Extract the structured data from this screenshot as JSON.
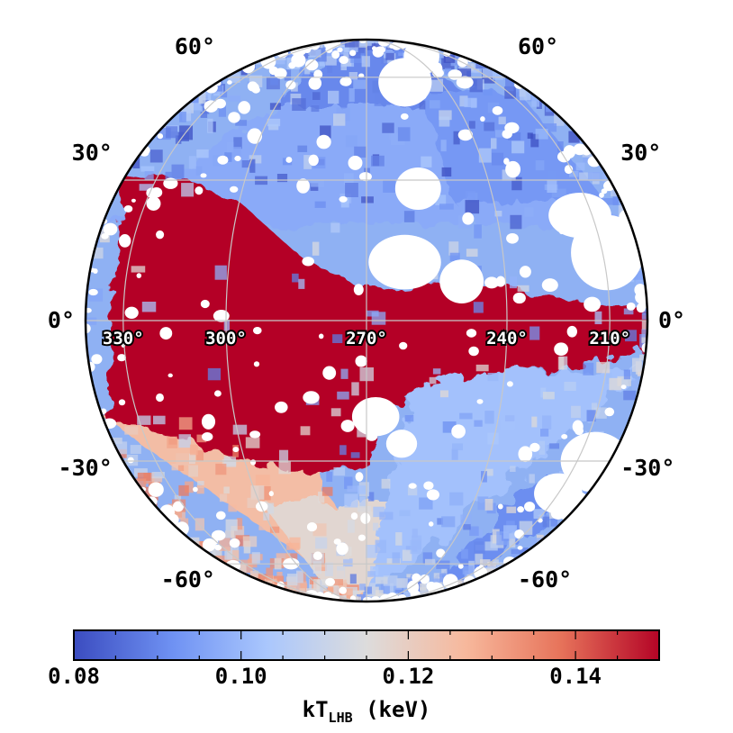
{
  "chart_data": {
    "type": "heatmap",
    "projection": "orthographic sky map (hemisphere)",
    "center_longitude": 270,
    "center_latitude": 0,
    "meridians_deg": [
      330,
      300,
      270,
      240,
      210
    ],
    "parallels_deg": [
      -60,
      -30,
      0,
      30,
      60
    ],
    "lon_labels": [
      "330°",
      "300°",
      "270°",
      "240°",
      "210°"
    ],
    "lat_labels_left": [
      "60°",
      "30°",
      "0°",
      "-30°",
      "-60°"
    ],
    "lat_labels_right": [
      "60°",
      "30°",
      "0°",
      "-30°",
      "-60°"
    ],
    "grid": true,
    "colorbar": {
      "label_main": "kT",
      "label_sub": "LHB",
      "label_unit": " (keV)",
      "range": [
        0.08,
        0.15
      ],
      "ticks": [
        "0.08",
        "0.10",
        "0.12",
        "0.14"
      ],
      "tick_values": [
        0.08,
        0.1,
        0.12,
        0.14
      ],
      "colormap": "coolwarm",
      "colors": [
        "#3b4cc0",
        "#6f92f3",
        "#aac7fd",
        "#dddcdc",
        "#f7b89c",
        "#e7745b",
        "#b40426"
      ],
      "orientation": "horizontal",
      "placement": "bottom"
    },
    "regions": [
      {
        "description": "saturated high temperature band along latitude 0 to 30 on left side",
        "value": 0.15
      },
      {
        "description": "southern left region moderate warm",
        "value": 0.125
      },
      {
        "description": "northern region cool",
        "value": 0.095
      },
      {
        "description": "right side southern region cool",
        "value": 0.1
      }
    ],
    "masked_color": "#ffffff"
  }
}
